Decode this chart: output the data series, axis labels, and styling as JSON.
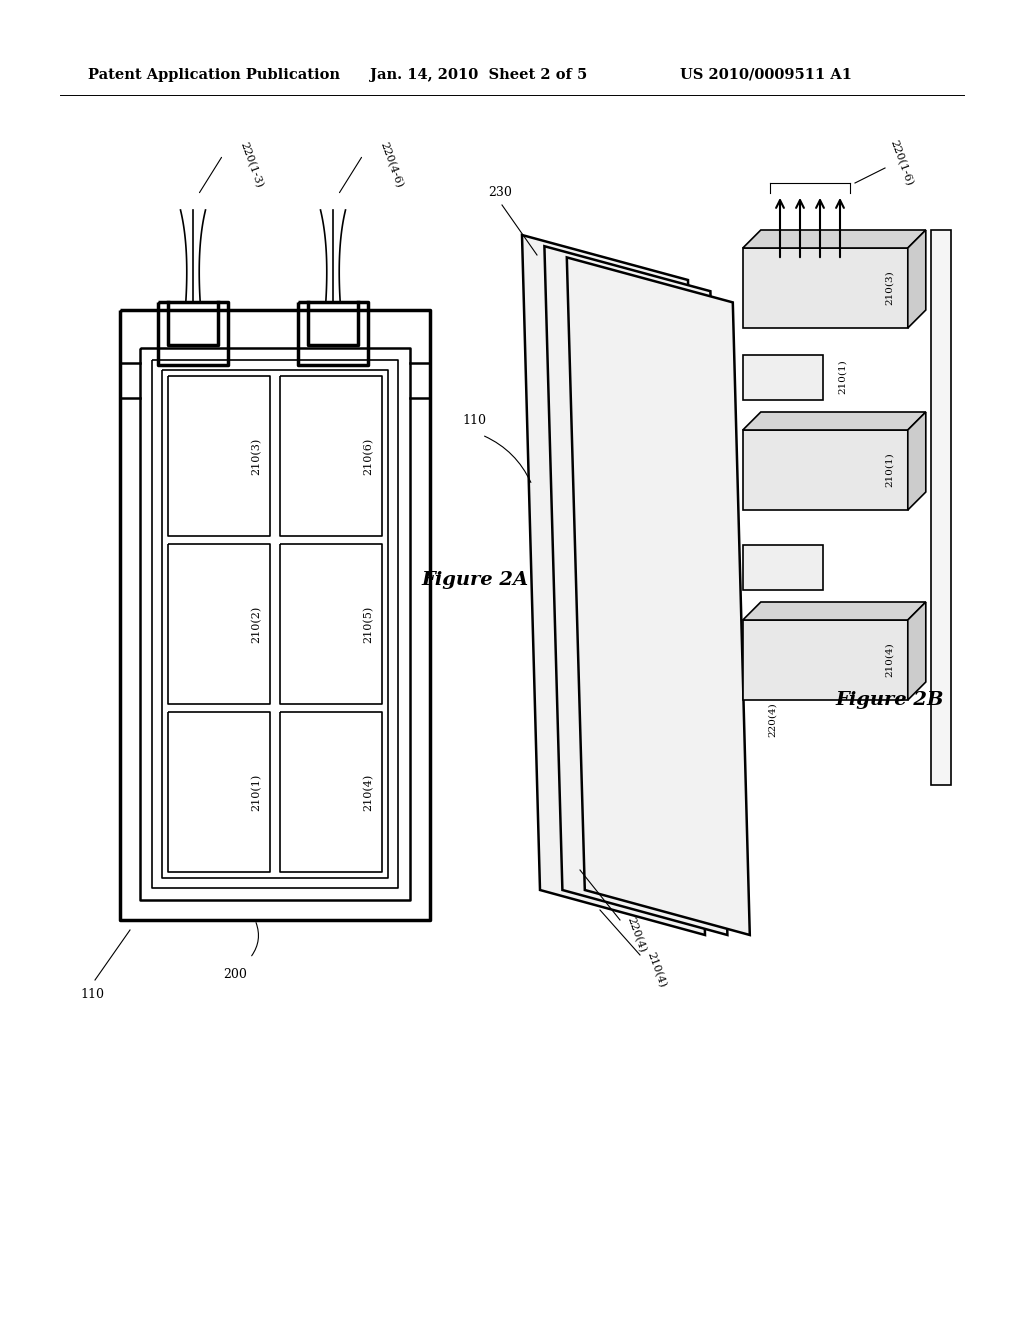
{
  "bg_color": "#ffffff",
  "header_text": "Patent Application Publication",
  "header_date": "Jan. 14, 2010  Sheet 2 of 5",
  "header_patent": "US 2010/0009511 A1",
  "fig2a_label": "Figure 2A",
  "fig2b_label": "Figure 2B",
  "label_200": "200",
  "label_110_left": "110",
  "label_110_right": "110",
  "label_230": "230",
  "label_220_13": "220(1-3)",
  "label_220_46": "220(4-6)",
  "label_220_16": "220(1-6)",
  "label_220_4": "220(4)",
  "label_210_1": "210(1)",
  "label_210_3": "210(3)",
  "label_210_4": "210(4)"
}
